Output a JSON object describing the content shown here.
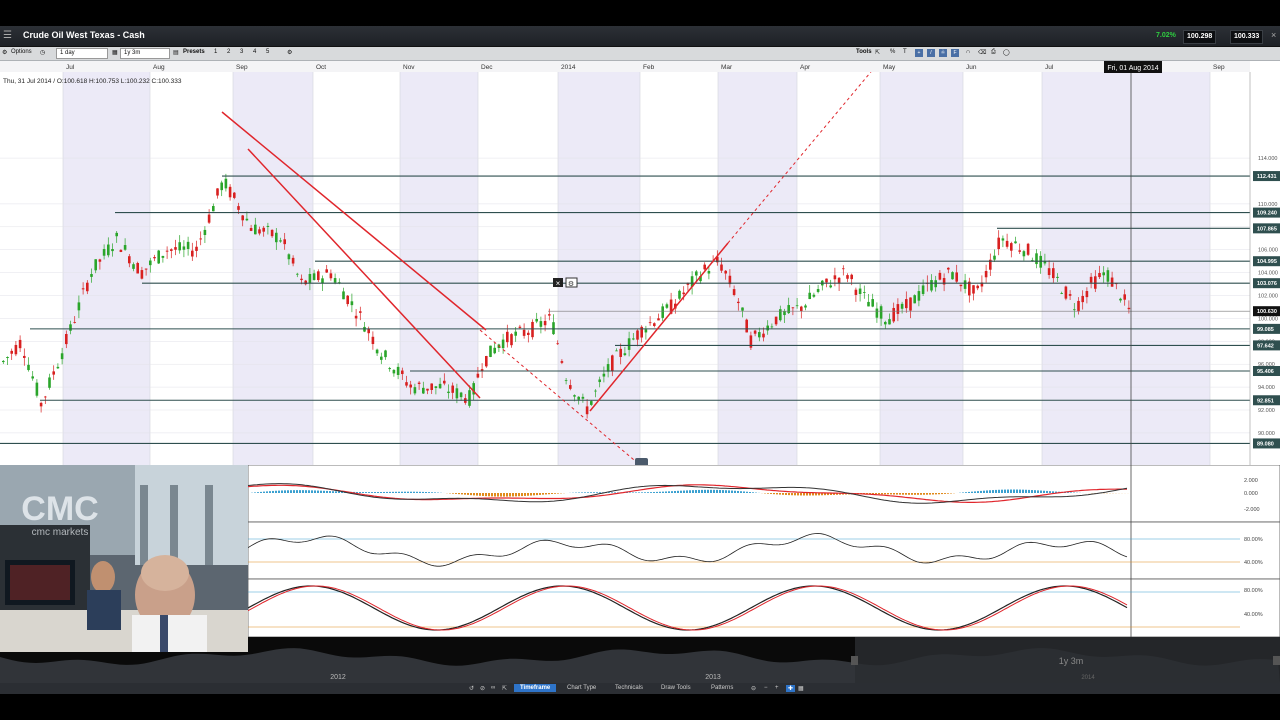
{
  "window": {
    "title": "Crude Oil West Texas - Cash",
    "change_pct": "7.02%",
    "sell": "100.298",
    "buy": "100.333"
  },
  "toolbar": {
    "options": "Options",
    "interval": "1 day",
    "range": "1y 3m",
    "presets": "Presets",
    "preset_nums": [
      "1",
      "2",
      "3",
      "4",
      "5"
    ],
    "tools": "Tools",
    "percent": "%"
  },
  "chart": {
    "ohlc": "Thu, 31 Jul 2014 / O:100.618  H:100.753  L:100.232  C:100.333",
    "cursor_date": "Fri, 01 Aug 2014",
    "months": [
      "Jul",
      "Aug",
      "Sep",
      "Oct",
      "Nov",
      "Dec",
      "2014",
      "Feb",
      "Mar",
      "Apr",
      "May",
      "Jun",
      "Jul",
      "Sep"
    ],
    "axis_ticks": [
      "114.000",
      "110.000",
      "108.000",
      "106.000",
      "104.000",
      "102.000",
      "100.000",
      "98.000",
      "96.000",
      "94.000",
      "92.000",
      "90.000"
    ],
    "level_labels": [
      "112.431",
      "109.240",
      "107.865",
      "104.995",
      "103.076",
      "100.630",
      "99.085",
      "97.642",
      "95.406",
      "92.851",
      "89.080"
    ],
    "current_price": "100.630"
  },
  "indicators": {
    "macd_ticks": [
      "2.000",
      "0.000",
      "-2.000"
    ],
    "rsi_ticks": [
      "80.00%",
      "40.00%"
    ],
    "stoch_ticks": [
      "80.00%",
      "40.00%"
    ]
  },
  "navigator": {
    "labels": [
      "2012",
      "2013"
    ],
    "range_label": "1y 3m",
    "range_sub": "2014"
  },
  "bottombar": {
    "items": [
      "Timeframe",
      "Chart Type",
      "Technicals",
      "Draw Tools",
      "Patterns"
    ]
  },
  "webcam": {
    "logo": "CMC",
    "sub": "cmc markets"
  },
  "colors": {
    "accent": "#4a8fd8",
    "positive": "#00b050",
    "trend_red": "#e0262c",
    "level": "#2f4f4f"
  }
}
